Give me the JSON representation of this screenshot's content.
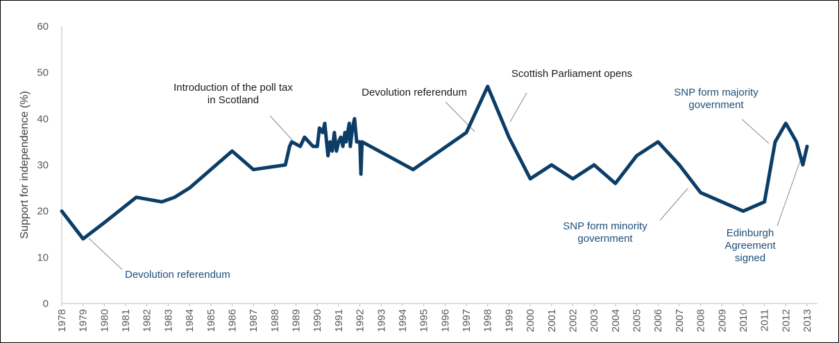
{
  "chart_data": {
    "type": "line",
    "title": "",
    "xlabel": "",
    "ylabel": "Support for independence (%)",
    "ylim": [
      0,
      60
    ],
    "yticks": [
      0,
      10,
      20,
      30,
      40,
      50,
      60
    ],
    "grid": false,
    "legend": "none",
    "line_color": "#0b3d66",
    "x_tick_labels": [
      "1978",
      "1979",
      "1980",
      "1981",
      "1982",
      "1983",
      "1984",
      "1985",
      "1986",
      "1987",
      "1988",
      "1989",
      "1990",
      "1991",
      "1992",
      "1993",
      "1994",
      "1995",
      "1996",
      "1997",
      "1998",
      "1999",
      "2000",
      "2001",
      "2002",
      "2003",
      "2004",
      "2005",
      "2006",
      "2007",
      "2008",
      "2009",
      "2010",
      "2011",
      "2012",
      "2013"
    ],
    "series": [
      {
        "points": [
          [
            "1978",
            20
          ],
          [
            "1979",
            14
          ],
          [
            "1980",
            17.5
          ],
          [
            "1981.5",
            23
          ],
          [
            "1982.7",
            22
          ],
          [
            "1983.3",
            23
          ],
          [
            "1984",
            25
          ],
          [
            "1986",
            33
          ],
          [
            "1987",
            29
          ],
          [
            "1988.5",
            30
          ],
          [
            "1988.7",
            34
          ],
          [
            "1988.8",
            35
          ],
          [
            "1989.2",
            34
          ],
          [
            "1989.4",
            36
          ],
          [
            "1989.8",
            34
          ],
          [
            "1990",
            34
          ],
          [
            "1990.1",
            38
          ],
          [
            "1990.25",
            37
          ],
          [
            "1990.35",
            39
          ],
          [
            "1990.5",
            32
          ],
          [
            "1990.6",
            35
          ],
          [
            "1990.7",
            33
          ],
          [
            "1990.8",
            37
          ],
          [
            "1990.9",
            33
          ],
          [
            "1991",
            35
          ],
          [
            "1991.1",
            36
          ],
          [
            "1991.2",
            34
          ],
          [
            "1991.3",
            37
          ],
          [
            "1991.35",
            35
          ],
          [
            "1991.5",
            39
          ],
          [
            "1991.55",
            34
          ],
          [
            "1991.65",
            38
          ],
          [
            "1991.75",
            40
          ],
          [
            "1991.85",
            35
          ],
          [
            "1992",
            35
          ],
          [
            "1992.05",
            28
          ],
          [
            "1992.1",
            35
          ],
          [
            "1994.5",
            29
          ],
          [
            "1997",
            37
          ],
          [
            "1998",
            47
          ],
          [
            "1999",
            36
          ],
          [
            "2000",
            27
          ],
          [
            "2001",
            30
          ],
          [
            "2002",
            27
          ],
          [
            "2003",
            30
          ],
          [
            "2004",
            26
          ],
          [
            "2005",
            32
          ],
          [
            "2006",
            35
          ],
          [
            "2007",
            30
          ],
          [
            "2008",
            24
          ],
          [
            "2010",
            20
          ],
          [
            "2011",
            22
          ],
          [
            "2011.5",
            35
          ],
          [
            "2012",
            39
          ],
          [
            "2012.5",
            35
          ],
          [
            "2012.8",
            30
          ],
          [
            "2013",
            34
          ]
        ]
      }
    ],
    "annotations": [
      {
        "id": "devo-1979",
        "lines": [
          "Devolution referendum"
        ],
        "color": "blue"
      },
      {
        "id": "poll-tax",
        "lines": [
          "Introduction of the poll tax",
          "in Scotland"
        ],
        "color": "black"
      },
      {
        "id": "devo-1997",
        "lines": [
          "Devolution referendum"
        ],
        "color": "black"
      },
      {
        "id": "parliament",
        "lines": [
          "Scottish Parliament opens"
        ],
        "color": "black"
      },
      {
        "id": "snp-majority",
        "lines": [
          "SNP form majority",
          "government"
        ],
        "color": "blue"
      },
      {
        "id": "snp-minority",
        "lines": [
          "SNP form minority",
          "government"
        ],
        "color": "blue"
      },
      {
        "id": "edinburgh",
        "lines": [
          "Edinburgh",
          "Agreement",
          "signed"
        ],
        "color": "blue"
      }
    ]
  }
}
